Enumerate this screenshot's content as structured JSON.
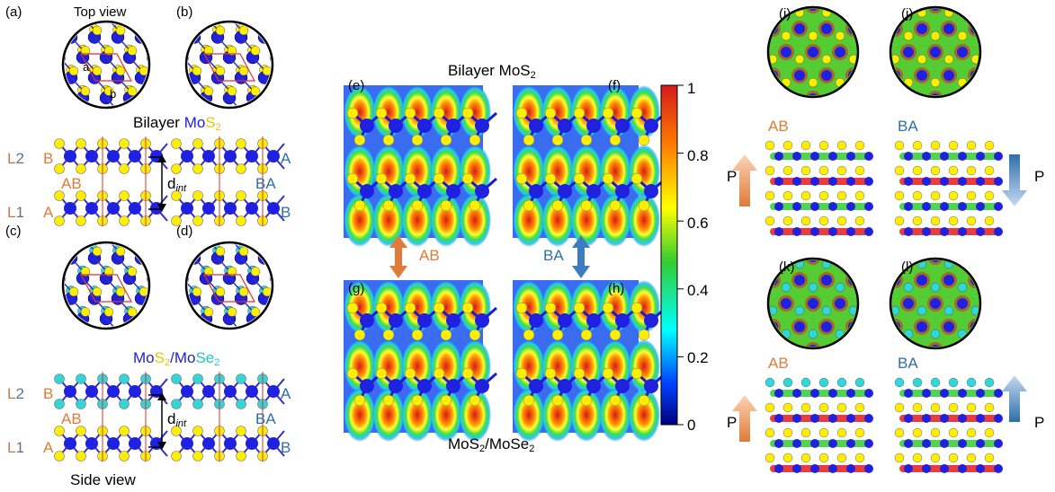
{
  "panels": {
    "a": "(a)",
    "b": "(b)",
    "c": "(c)",
    "d": "(d)",
    "e": "(e)",
    "f": "(f)",
    "g": "(g)",
    "h": "(h)",
    "i": "(i)",
    "j": "(j)",
    "k": "(k)",
    "l": "(l)"
  },
  "left": {
    "top_view": "Top view",
    "side_view": "Side view",
    "lattice_a": "a",
    "lattice_b": "b",
    "bilayer_mos2": {
      "prefix": "Bilayer ",
      "mo": "Mo",
      "s": "S",
      "sub": "2"
    },
    "hetero": {
      "mo1": "Mo",
      "s1": "S",
      "sub1": "2",
      "slash": "/",
      "mo2": "Mo",
      "se": "Se",
      "sub2": "2"
    },
    "L2": "L2",
    "L1": "L1",
    "B": "B",
    "A": "A",
    "AB": "AB",
    "BA": "BA",
    "dint": {
      "d": "d",
      "sub": "int"
    }
  },
  "middle": {
    "title_top": {
      "text": "Bilayer MoS",
      "sub": "2"
    },
    "title_bottom": {
      "a": "MoS",
      "sub1": "2",
      "slash": "/MoSe",
      "sub2": "2"
    },
    "arrow_AB": "AB",
    "arrow_BA": "BA"
  },
  "colorbar": {
    "ticks": [
      "1",
      "0.8",
      "0.6",
      "0.4",
      "0.2",
      "0"
    ],
    "colors": [
      "#d7191c",
      "#ff7f00",
      "#ffff00",
      "#33cc33",
      "#00ffff",
      "#0000ff",
      "#00007f"
    ]
  },
  "right": {
    "AB_top": "AB",
    "BA_top": "BA",
    "AB_bottom": "AB",
    "BA_bottom": "BA",
    "P": "P"
  },
  "colors": {
    "sulfur": "#ffee00",
    "selenium": "#33d6d6",
    "molybdenum": "#2020e0",
    "orange": "#e07b39",
    "blue": "#2f6ea8",
    "cell": "#e03030",
    "green_density": "#33cc33",
    "red_density": "#e41a1c"
  }
}
